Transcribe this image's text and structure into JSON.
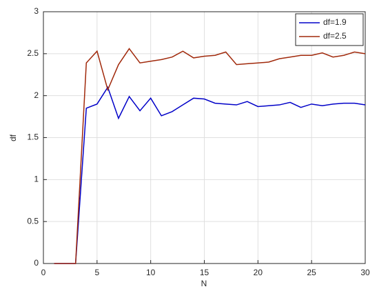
{
  "chart_data": {
    "type": "line",
    "x": [
      1,
      2,
      3,
      4,
      5,
      6,
      7,
      8,
      9,
      10,
      11,
      12,
      13,
      14,
      15,
      16,
      17,
      18,
      19,
      20,
      21,
      22,
      23,
      24,
      25,
      26,
      27,
      28,
      29,
      30
    ],
    "series": [
      {
        "name": "df=1.9",
        "color": "#0000c8",
        "values": [
          0,
          0,
          0,
          1.85,
          1.9,
          2.1,
          1.73,
          1.99,
          1.82,
          1.97,
          1.76,
          1.81,
          1.89,
          1.97,
          1.96,
          1.91,
          1.9,
          1.89,
          1.93,
          1.87,
          1.88,
          1.89,
          1.92,
          1.86,
          1.9,
          1.88,
          1.9,
          1.91,
          1.91,
          1.89
        ]
      },
      {
        "name": "df=2.5",
        "color": "#a0280a",
        "values": [
          0,
          0,
          0,
          2.39,
          2.53,
          2.07,
          2.37,
          2.56,
          2.39,
          2.41,
          2.43,
          2.46,
          2.53,
          2.45,
          2.47,
          2.48,
          2.52,
          2.37,
          2.38,
          2.39,
          2.4,
          2.44,
          2.46,
          2.48,
          2.48,
          2.51,
          2.46,
          2.48,
          2.52,
          2.5
        ]
      }
    ],
    "xlabel": "N",
    "ylabel": "df",
    "xlim": [
      0,
      30
    ],
    "ylim": [
      0,
      3
    ],
    "xticks": [
      0,
      5,
      10,
      15,
      20,
      25,
      30
    ],
    "yticks": [
      0,
      0.5,
      1,
      1.5,
      2,
      2.5,
      3
    ],
    "grid": true,
    "legend": "top-right"
  }
}
